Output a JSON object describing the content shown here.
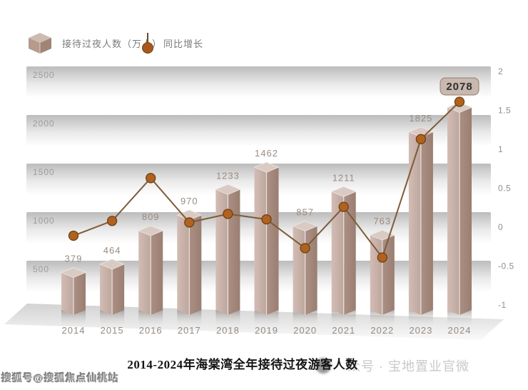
{
  "title": "2014-2024年海棠湾全年接待过夜游客人数",
  "legend": {
    "bar_label": "接待过夜人数（万人）",
    "line_label": "同比增长"
  },
  "watermarks": {
    "bottom_left": "搜狐号@搜狐焦点仙桃站",
    "right": "众号 · 宝地置业官微"
  },
  "chart_data": {
    "type": "bar",
    "subtype": "3d-bar-with-line-overlay",
    "title": "2014-2024年海棠湾全年接待过夜游客人数",
    "categories": [
      "2014",
      "2015",
      "2016",
      "2017",
      "2018",
      "2019",
      "2020",
      "2021",
      "2022",
      "2023",
      "2024"
    ],
    "series": [
      {
        "name": "接待过夜人数（万人）",
        "type": "bar",
        "axis": "left",
        "values": [
          379,
          464,
          809,
          970,
          1233,
          1462,
          857,
          1211,
          763,
          1825,
          2078
        ]
      },
      {
        "name": "同比增长",
        "type": "line",
        "axis": "right",
        "values": [
          -0.11,
          0.08,
          0.63,
          0.06,
          0.17,
          0.1,
          -0.27,
          0.26,
          -0.39,
          1.13,
          1.61
        ]
      }
    ],
    "left_axis": {
      "ticks": [
        500,
        1000,
        1500,
        2000,
        2500
      ],
      "range": [
        0,
        2500
      ],
      "unit": "万人"
    },
    "right_axis": {
      "ticks": [
        2,
        1.5,
        1,
        0.5,
        0,
        -0.5,
        -1
      ],
      "range": [
        -1,
        2
      ]
    },
    "highlighted_label": "2078",
    "legend_position": "top-left",
    "grid": "horizontal-gradient-bands",
    "colors": {
      "bar_face_left": "#c9b2a9",
      "bar_face_right": "#a2867a",
      "bar_top": "#d9cbc3",
      "band_gray": "#bcbcbc",
      "line": "#7d5b38",
      "dot_fill": "#b06220",
      "dot_stroke": "#6e4012",
      "badge_bg": "#c8b8ad",
      "badge_border": "#8f7f72",
      "label_text": "#9a8c82",
      "floor": "#d2d2d2"
    }
  }
}
